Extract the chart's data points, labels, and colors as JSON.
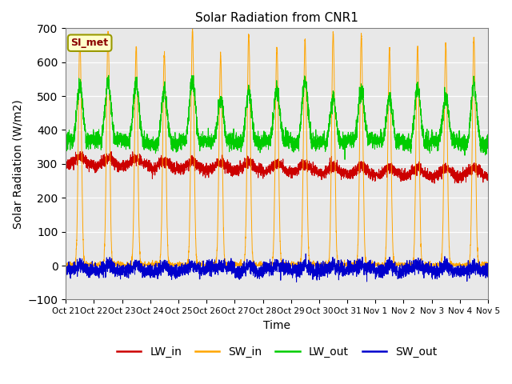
{
  "title": "Solar Radiation from CNR1",
  "xlabel": "Time",
  "ylabel": "Solar Radiation (W/m2)",
  "ylim": [
    -100,
    700
  ],
  "yticks": [
    -100,
    0,
    100,
    200,
    300,
    400,
    500,
    600,
    700
  ],
  "colors": {
    "LW_in": "#cc0000",
    "SW_in": "#ffa500",
    "LW_out": "#00cc00",
    "SW_out": "#0000cc"
  },
  "legend_label": "SI_met",
  "background_color": "#e8e8e8",
  "n_days": 15,
  "n_points_per_day": 288,
  "figsize": [
    6.4,
    4.8
  ],
  "dpi": 100
}
